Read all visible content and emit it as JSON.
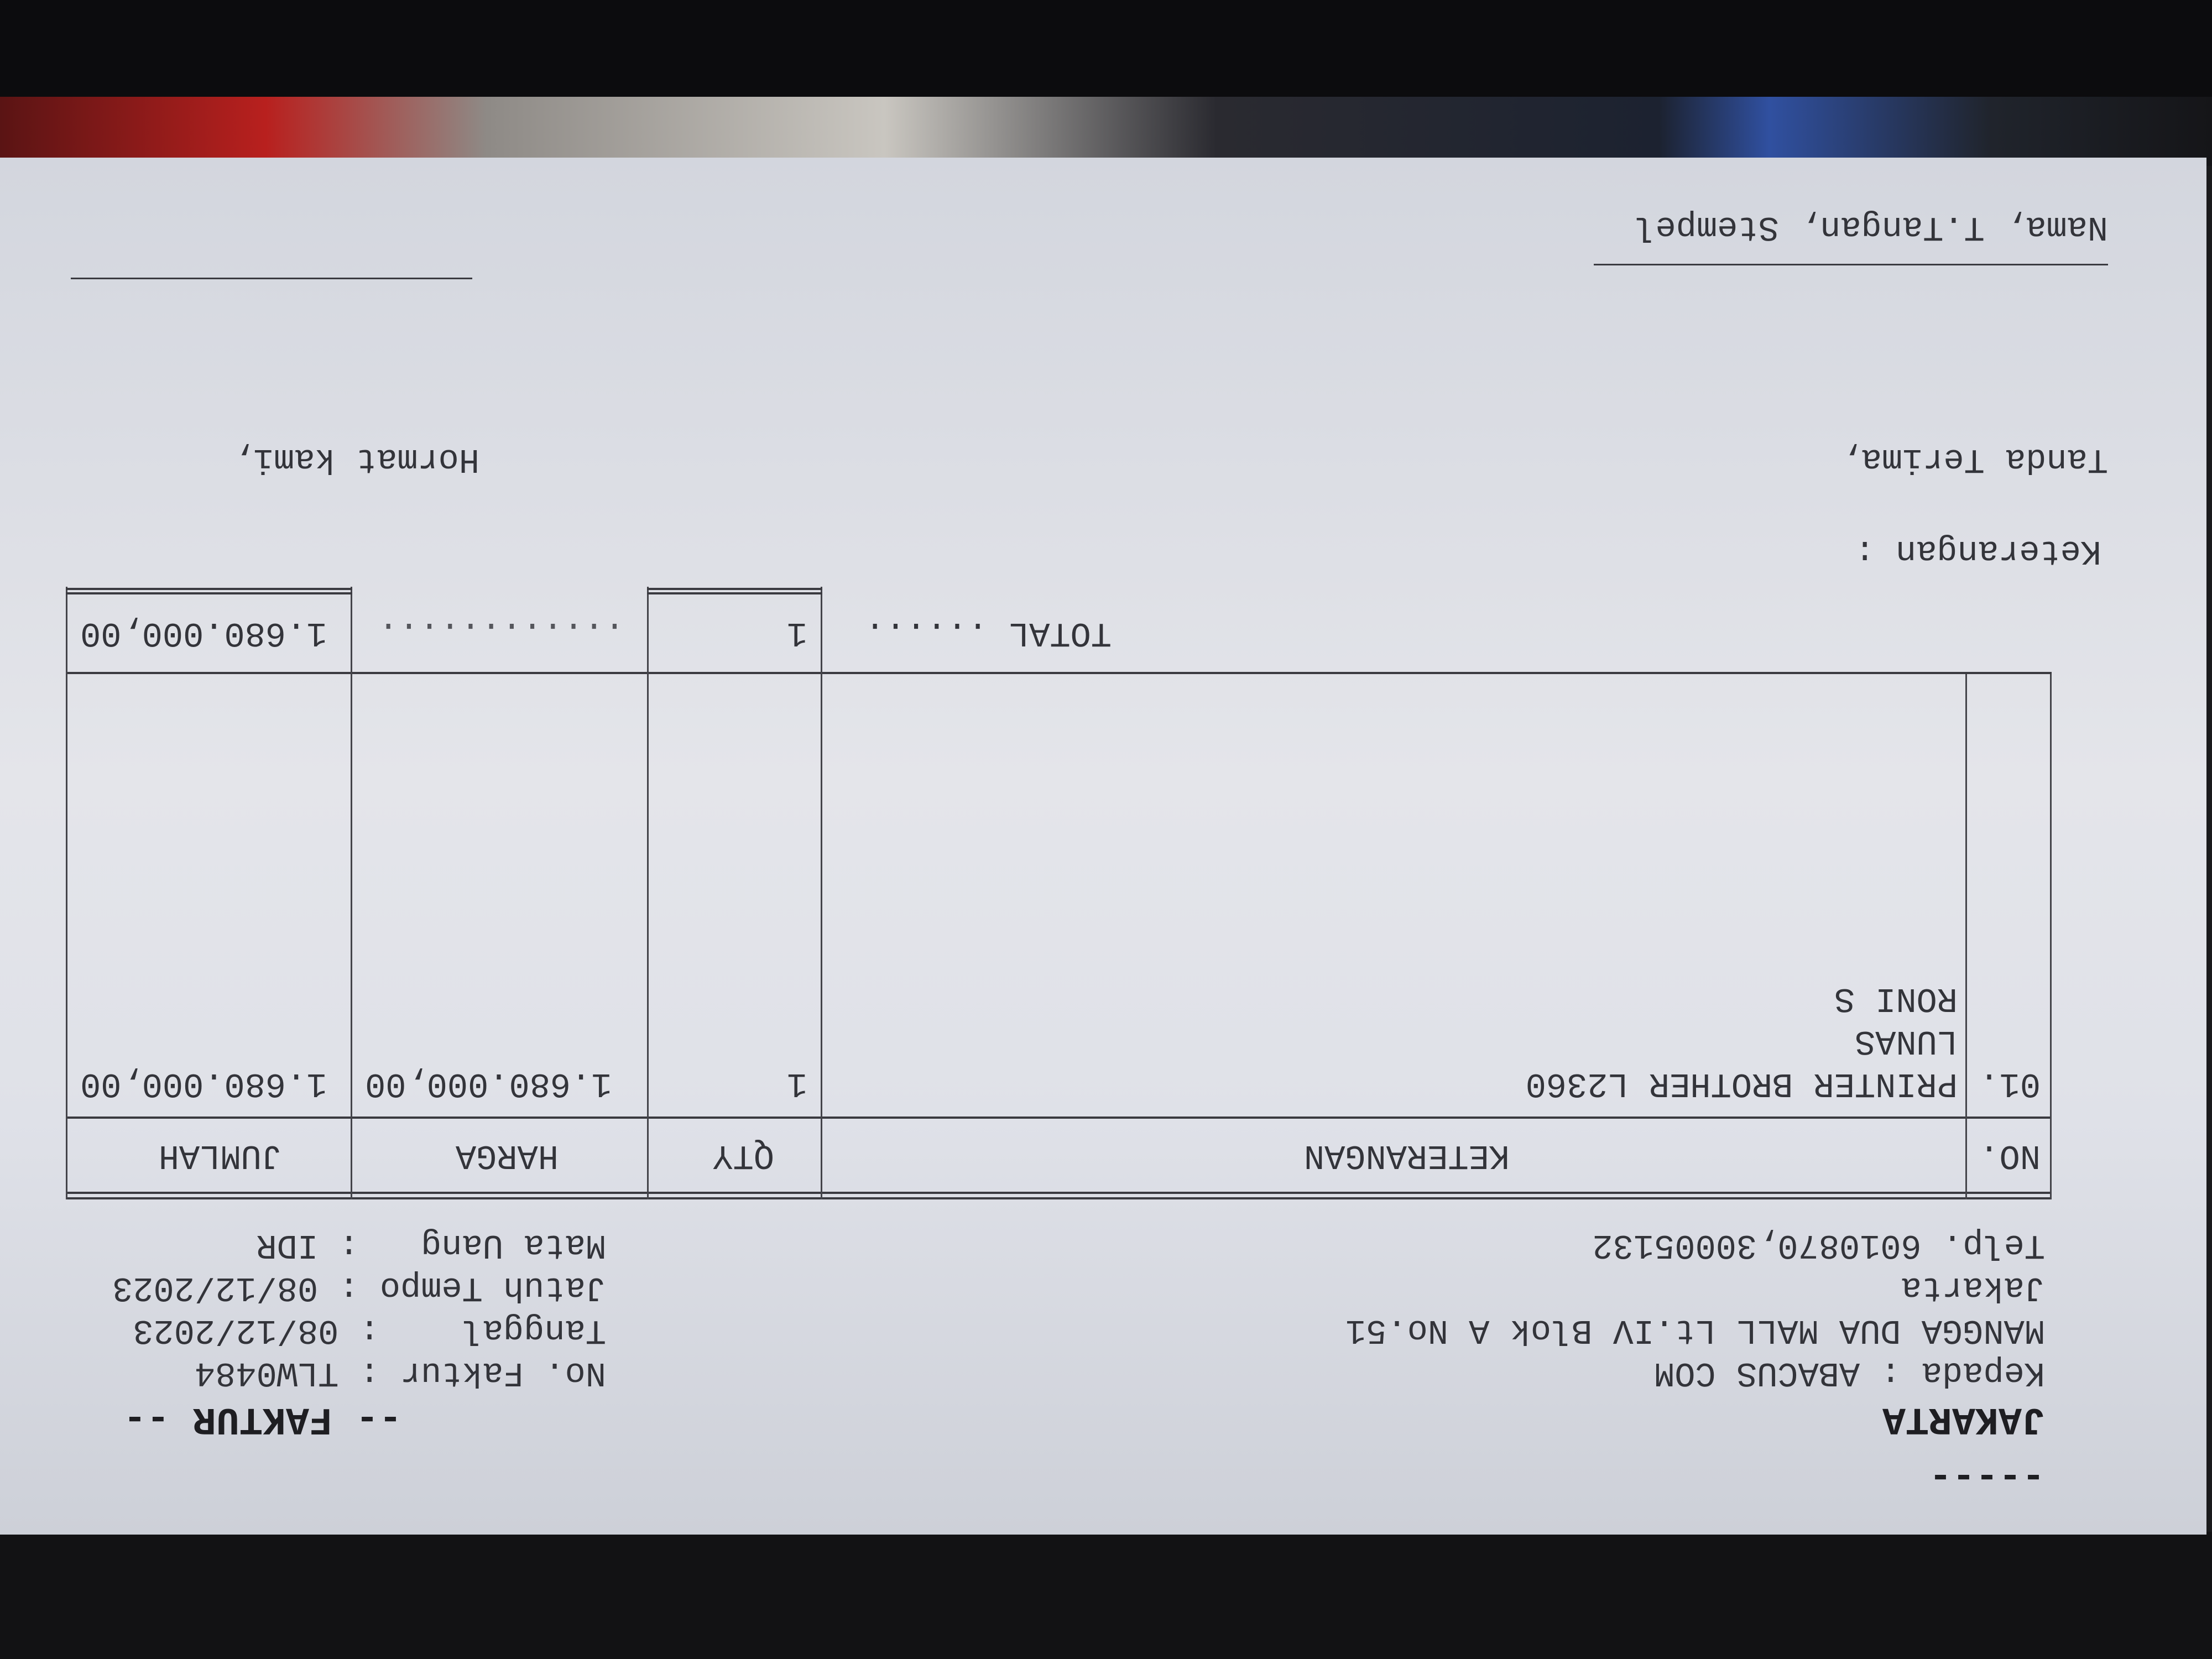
{
  "header": {
    "city": "JAKARTA",
    "doc_title": "-- FAKTUR --",
    "dashes": "-----"
  },
  "customer": {
    "label": "Kepada",
    "name": "ABACUS COM",
    "address1": "MANGGA DUA MALL Lt.IV Blok A No.51",
    "address2": "Jakarta",
    "phone": "Telp. 6010870,30005132"
  },
  "invoice": {
    "no_label": "No. Faktur",
    "no": "TLW0484",
    "date_label": "Tanggal",
    "date": "08/12/2023",
    "due_label": "Jatuh Tempo",
    "due": "08/12/2023",
    "currency_label": "Mata Uang",
    "currency": "IDR"
  },
  "table": {
    "headers": [
      "NO.",
      "KETERANGAN",
      "QTY",
      "HARGA",
      "JUMLAH"
    ],
    "rows": [
      {
        "no": "01.",
        "desc": "PRINTER BROTHER L2360",
        "notes": [
          "LUNAS",
          "RONI S"
        ],
        "qty": "1",
        "price": "1.680.000,00",
        "amount": "1.680.000,00"
      }
    ],
    "total_label": "TOTAL",
    "total_qty": "1",
    "total_amount": "1.680.000,00"
  },
  "footer": {
    "remarks_label": "Keterangan :",
    "receiver_label": "Tanda Terima,",
    "sender_label": "Hormat kami,",
    "signature_caption": "Nama, T.Tangan, Stempel"
  }
}
